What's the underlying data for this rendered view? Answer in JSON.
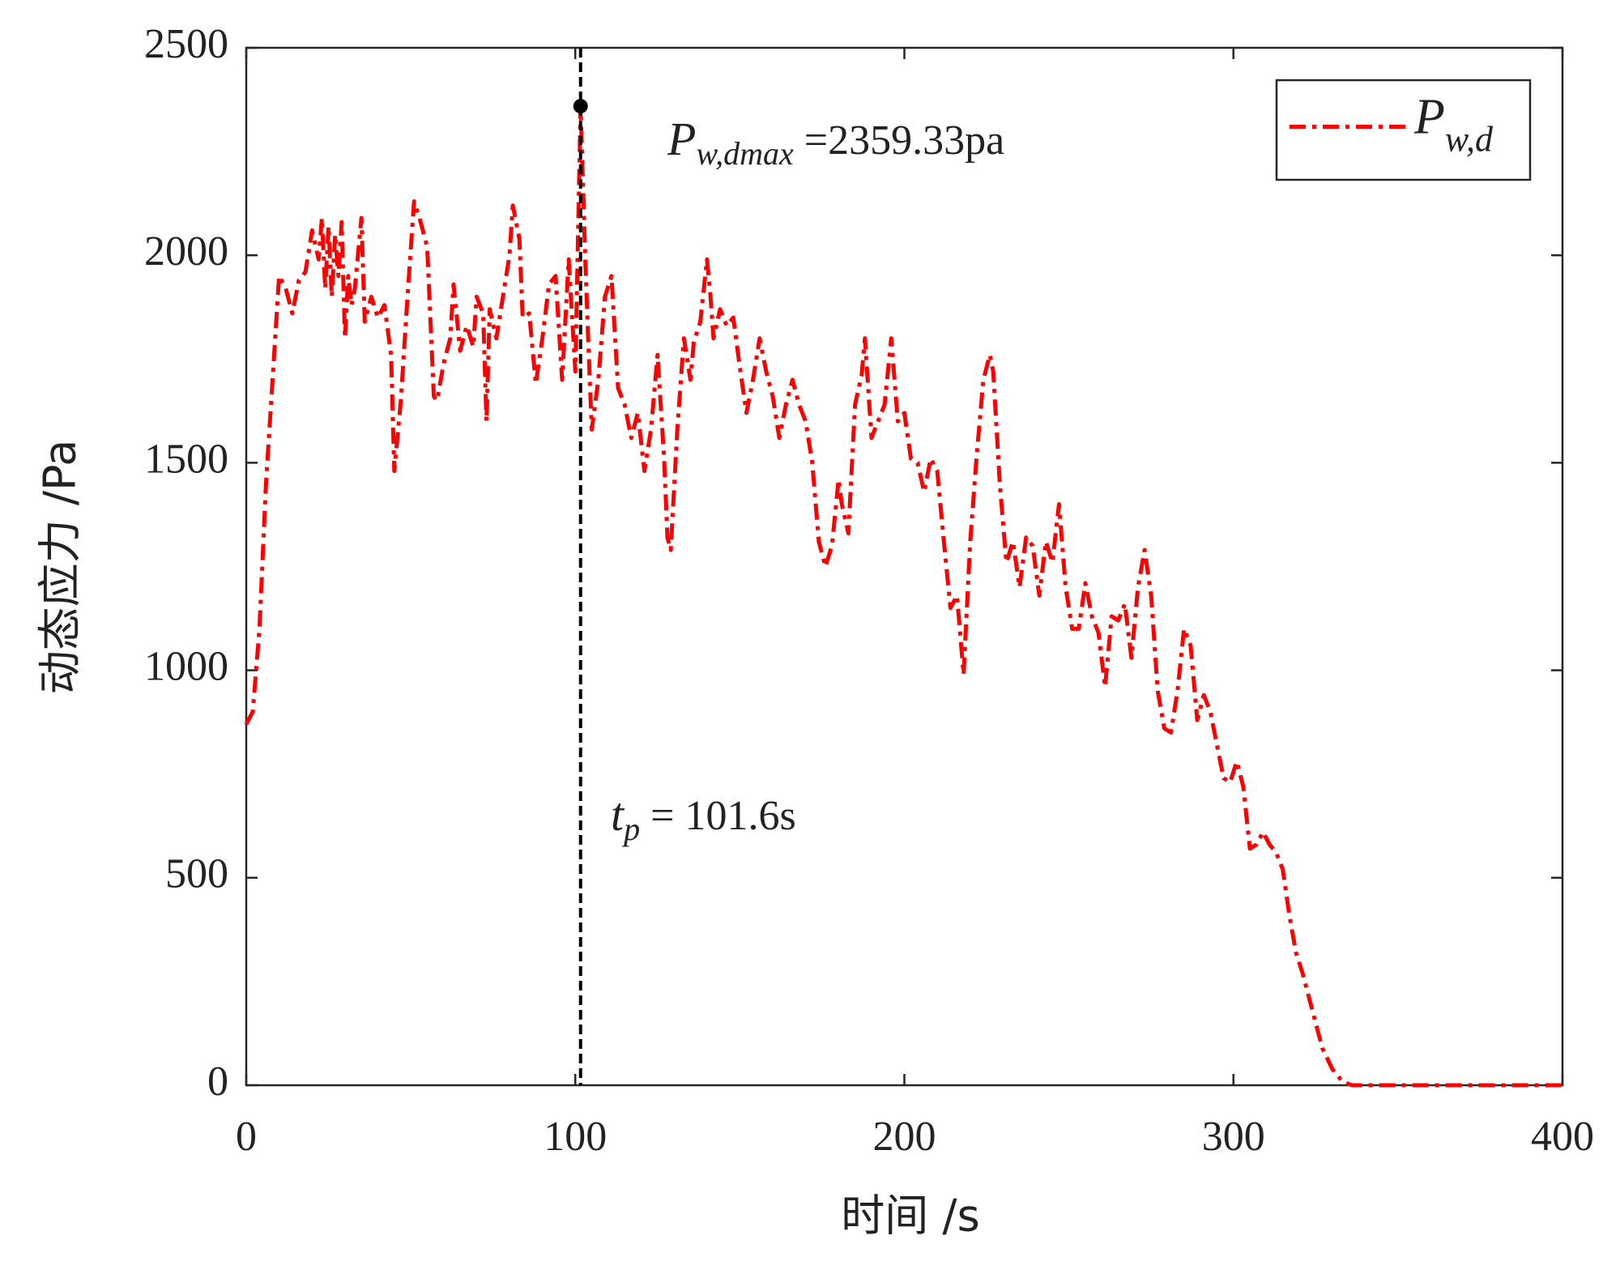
{
  "chart_data": {
    "type": "line",
    "xlabel": "时间 /s",
    "ylabel": "动态应力 /Pa",
    "x": [
      0,
      2,
      4,
      6,
      8,
      10,
      12,
      14,
      16,
      18,
      20,
      22,
      23,
      24,
      25,
      26,
      27,
      28,
      29,
      30,
      31,
      32,
      33,
      35,
      36,
      38,
      40,
      42,
      44,
      45,
      47,
      49,
      51,
      53,
      55,
      57,
      58,
      60,
      62,
      63,
      65,
      67,
      69,
      70,
      72,
      73,
      74,
      76,
      78,
      80,
      81,
      83,
      84,
      86,
      88,
      90,
      92,
      94,
      96,
      98,
      100,
      101.6,
      103,
      104,
      105,
      107,
      109,
      111,
      113,
      115,
      117,
      119,
      121,
      123,
      125,
      127,
      128,
      129,
      131,
      133,
      135,
      136,
      138,
      140,
      141,
      142,
      144,
      146,
      148,
      150,
      152,
      154,
      156,
      158,
      160,
      162,
      164,
      166,
      168,
      170,
      172,
      174,
      176,
      178,
      180,
      181,
      183,
      185,
      187,
      188,
      190,
      192,
      194,
      196,
      198,
      200,
      202,
      204,
      206,
      208,
      210,
      212,
      214,
      216,
      218,
      220,
      222,
      224,
      226,
      227,
      229,
      231,
      233,
      235,
      237,
      239,
      241,
      243,
      245,
      247,
      249,
      251,
      253,
      255,
      257,
      259,
      261,
      263,
      265,
      267,
      269,
      271,
      273,
      275,
      277,
      279,
      281,
      283,
      285,
      287,
      289,
      291,
      293,
      295,
      297,
      299,
      301,
      303,
      305,
      307,
      309,
      311,
      313,
      315,
      317,
      319,
      321,
      323,
      325,
      327,
      330,
      333,
      336,
      340,
      400
    ],
    "series": [
      {
        "name": "P",
        "subscript": "w,d",
        "color": "#ff0000",
        "values": [
          870,
          900,
          1100,
          1450,
          1700,
          1950,
          1920,
          1860,
          1940,
          1960,
          2060,
          1990,
          2090,
          1920,
          2070,
          1900,
          2050,
          1950,
          2080,
          1800,
          1950,
          1880,
          1920,
          2090,
          1840,
          1900,
          1850,
          1880,
          1760,
          1480,
          1650,
          1900,
          2130,
          2080,
          2020,
          1660,
          1650,
          1740,
          1800,
          1930,
          1770,
          1830,
          1780,
          1900,
          1860,
          1600,
          1870,
          1800,
          1900,
          2000,
          2120,
          2040,
          1850,
          1860,
          1690,
          1800,
          1930,
          1950,
          1700,
          1990,
          1720,
          2359.33,
          2000,
          1780,
          1580,
          1700,
          1900,
          1950,
          1680,
          1640,
          1560,
          1620,
          1480,
          1580,
          1760,
          1510,
          1320,
          1290,
          1580,
          1800,
          1700,
          1790,
          1840,
          1990,
          1910,
          1800,
          1870,
          1830,
          1850,
          1730,
          1620,
          1700,
          1800,
          1720,
          1660,
          1560,
          1640,
          1700,
          1640,
          1600,
          1500,
          1310,
          1250,
          1300,
          1460,
          1400,
          1330,
          1640,
          1710,
          1800,
          1560,
          1600,
          1640,
          1800,
          1600,
          1620,
          1510,
          1500,
          1430,
          1510,
          1480,
          1310,
          1150,
          1180,
          990,
          1310,
          1520,
          1700,
          1760,
          1720,
          1450,
          1260,
          1310,
          1200,
          1320,
          1300,
          1180,
          1310,
          1260,
          1400,
          1200,
          1100,
          1100,
          1210,
          1130,
          1090,
          960,
          1130,
          1120,
          1160,
          1030,
          1200,
          1290,
          1180,
          950,
          860,
          850,
          950,
          1100,
          1060,
          880,
          940,
          900,
          820,
          740,
          730,
          780,
          720,
          570,
          580,
          610,
          580,
          560,
          520,
          410,
          320,
          270,
          210,
          150,
          90,
          40,
          10,
          0,
          0,
          0
        ]
      }
    ],
    "xlim": [
      0,
      400
    ],
    "xticks": [
      0,
      100,
      200,
      300,
      400
    ],
    "ylim": [
      0,
      2500
    ],
    "yticks": [
      0,
      500,
      1000,
      1500,
      2000,
      2500
    ],
    "vline": {
      "x": 101.6
    },
    "peak": {
      "x": 101.6,
      "y": 2359.33
    },
    "annotations": [
      {
        "text": "P",
        "sub": "w,dmax",
        "suffix": " =2359.33pa"
      },
      {
        "text": "t",
        "sub": "p",
        "suffix": " = 101.6s"
      }
    ],
    "legend": "upper right"
  }
}
